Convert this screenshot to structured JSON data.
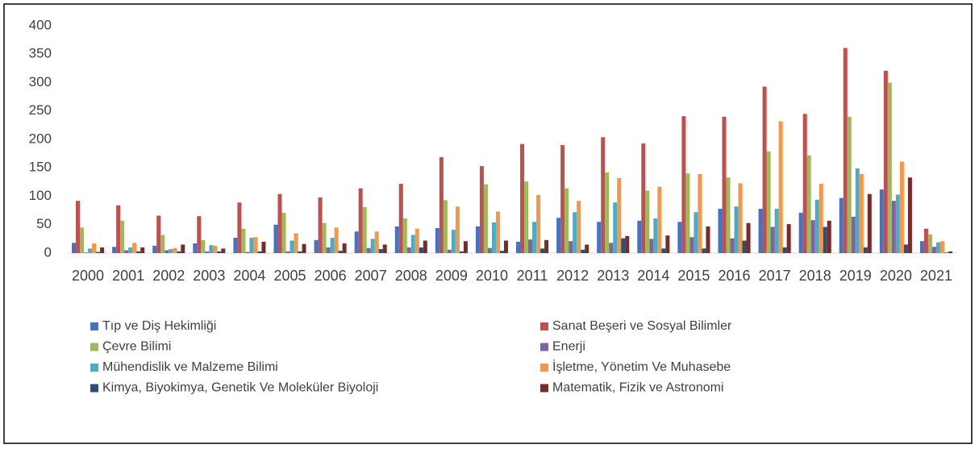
{
  "chart_data": {
    "type": "bar",
    "categories": [
      "2000",
      "2001",
      "2002",
      "2003",
      "2004",
      "2005",
      "2006",
      "2007",
      "2008",
      "2009",
      "2010",
      "2011",
      "2012",
      "2013",
      "2014",
      "2015",
      "2016",
      "2017",
      "2018",
      "2019",
      "2020",
      "2021"
    ],
    "series": [
      {
        "name": "Tıp ve Diş Hekimliği",
        "color": "#4472c4",
        "values": [
          18,
          11,
          13,
          17,
          27,
          50,
          23,
          38,
          47,
          44,
          47,
          20,
          62,
          55,
          57,
          55,
          78,
          78,
          71,
          97,
          112,
          21
        ]
      },
      {
        "name": "Sanat Beşeri ve Sosyal Bilimler",
        "color": "#c0504d",
        "values": [
          92,
          84,
          66,
          65,
          89,
          104,
          98,
          114,
          122,
          169,
          153,
          192,
          190,
          204,
          193,
          241,
          240,
          293,
          245,
          361,
          321,
          43
        ]
      },
      {
        "name": "Çevre Bilimi",
        "color": "#9bbb59",
        "values": [
          45,
          57,
          32,
          23,
          43,
          71,
          53,
          81,
          61,
          93,
          121,
          126,
          114,
          142,
          110,
          140,
          133,
          179,
          172,
          240,
          300,
          33
        ]
      },
      {
        "name": "Enerji",
        "color": "#8064a2",
        "values": [
          1,
          5,
          5,
          3,
          2,
          3,
          10,
          9,
          10,
          6,
          9,
          24,
          21,
          18,
          25,
          28,
          26,
          46,
          58,
          64,
          92,
          11
        ]
      },
      {
        "name": "Mühendislik ve Malzeme Bilimi",
        "color": "#4bacc6",
        "values": [
          8,
          10,
          7,
          14,
          27,
          22,
          27,
          25,
          32,
          41,
          54,
          55,
          72,
          89,
          61,
          72,
          82,
          78,
          94,
          149,
          103,
          19
        ]
      },
      {
        "name": "İşletme, Yönetim Ve Muhasebe",
        "color": "#f79646",
        "values": [
          17,
          18,
          9,
          13,
          28,
          35,
          45,
          38,
          43,
          82,
          73,
          102,
          92,
          132,
          117,
          139,
          123,
          232,
          122,
          139,
          161,
          21
        ]
      },
      {
        "name": "Kimya, Biyokimya, Genetik Ve Moleküler Biyoloji",
        "color": "#2c4d75",
        "values": [
          2,
          3,
          3,
          3,
          3,
          3,
          4,
          7,
          10,
          3,
          4,
          8,
          6,
          26,
          8,
          8,
          22,
          10,
          46,
          10,
          15,
          1
        ]
      },
      {
        "name": "Matematik, Fizik ve Astronomi",
        "color": "#772c2a",
        "values": [
          10,
          10,
          15,
          8,
          20,
          16,
          17,
          15,
          22,
          21,
          22,
          23,
          15,
          30,
          31,
          47,
          53,
          51,
          57,
          104,
          133,
          3
        ]
      }
    ],
    "ylim": [
      0,
      400
    ],
    "yticks": [
      0,
      50,
      100,
      150,
      200,
      250,
      300,
      350,
      400
    ],
    "grid": false,
    "legend": "bottom"
  }
}
